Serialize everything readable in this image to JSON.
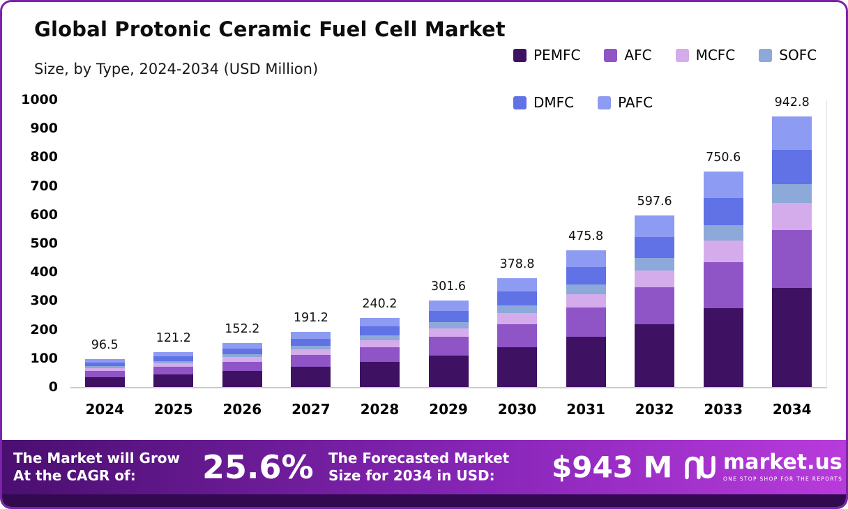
{
  "title": "Global Protonic Ceramic Fuel Cell Market",
  "subtitle": "Size, by Type, 2024-2034 (USD Million)",
  "chart_data": {
    "type": "bar",
    "stacked": true,
    "title": "Global Protonic Ceramic Fuel Cell Market Size, by Type, 2024-2034 (USD Million)",
    "categories": [
      "2024",
      "2025",
      "2026",
      "2027",
      "2028",
      "2029",
      "2030",
      "2031",
      "2032",
      "2033",
      "2034"
    ],
    "totals": [
      96.5,
      121.2,
      152.2,
      191.2,
      240.2,
      301.6,
      378.8,
      475.8,
      597.6,
      750.6,
      942.8
    ],
    "total_labels": [
      "96.5",
      "121.2",
      "152.2",
      "191.2",
      "240.2",
      "301.6",
      "378.8",
      "475.8",
      "597.6",
      "750.6",
      "942.8"
    ],
    "series": [
      {
        "name": "PEMFC",
        "color": "#3f1163",
        "values": [
          35.2,
          44.2,
          55.6,
          69.8,
          87.7,
          110.1,
          138.3,
          173.7,
          218.1,
          274.0,
          344.1
        ]
      },
      {
        "name": "AFC",
        "color": "#8f54c6",
        "values": [
          20.8,
          26.1,
          32.7,
          41.1,
          51.6,
          64.8,
          81.4,
          102.3,
          128.5,
          161.4,
          202.7
        ]
      },
      {
        "name": "MCFC",
        "color": "#d5aceb",
        "values": [
          9.7,
          12.1,
          15.2,
          19.1,
          24.0,
          30.2,
          37.9,
          47.6,
          59.8,
          75.1,
          94.3
        ]
      },
      {
        "name": "SOFC",
        "color": "#8ca9d9",
        "values": [
          6.7,
          8.5,
          10.7,
          13.4,
          16.8,
          21.1,
          26.5,
          33.3,
          41.8,
          52.5,
          66.0
        ]
      },
      {
        "name": "DMFC",
        "color": "#6072e6",
        "values": [
          12.1,
          15.2,
          19.0,
          23.9,
          30.0,
          37.7,
          47.4,
          59.5,
          74.7,
          93.8,
          117.9
        ]
      },
      {
        "name": "PAFC",
        "color": "#8e9bf2",
        "values": [
          12.0,
          15.1,
          19.0,
          23.9,
          30.1,
          37.7,
          47.3,
          59.4,
          74.7,
          93.8,
          117.8
        ]
      }
    ],
    "legend_rows": [
      [
        "PEMFC",
        "AFC",
        "MCFC",
        "SOFC"
      ],
      [
        "DMFC",
        "PAFC"
      ]
    ],
    "legend_position": "top-right",
    "grid": false,
    "ylim": [
      0,
      1000
    ],
    "yticks": [
      0,
      100,
      200,
      300,
      400,
      500,
      600,
      700,
      800,
      900,
      1000
    ],
    "xlabel": "",
    "ylabel": ""
  },
  "banner": {
    "cagr_label_line1": "The Market will Grow",
    "cagr_label_line2": "At the CAGR of:",
    "cagr_value": "25.6%",
    "forecast_label_line1": "The Forecasted Market",
    "forecast_label_line2": "Size for 2034 in USD:",
    "forecast_value": "$943 M",
    "logo_icon": "market-us-logo-icon",
    "logo_text": "market.us",
    "logo_tagline": "ONE STOP SHOP FOR THE REPORTS"
  },
  "colors": {
    "frame_border": "#7d22ab",
    "banner_gradient_start": "#4a0f70",
    "banner_gradient_mid": "#8b27bb",
    "banner_gradient_end": "#b83bdb",
    "bottom_strip": "#310a50",
    "axis_line": "#cbcbcb",
    "text": "#0d0d0d"
  }
}
